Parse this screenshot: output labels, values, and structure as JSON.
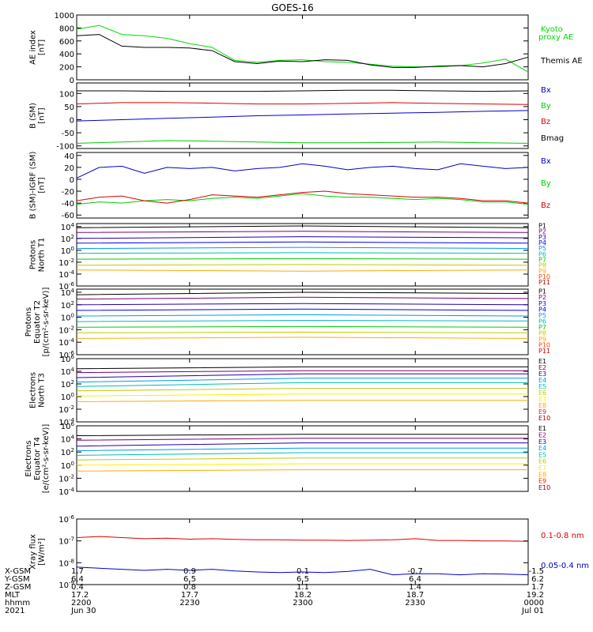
{
  "title": "GOES-16",
  "chart_data": [
    {
      "type": "line",
      "ylabel": [
        "AE index",
        "[nT]"
      ],
      "ylim": [
        0,
        1000
      ],
      "yticks": [
        "0",
        "200",
        "400",
        "600",
        "800",
        "1000"
      ],
      "ytick_values": [
        0,
        200,
        400,
        600,
        800,
        1000
      ],
      "log": false,
      "x": [
        0,
        6,
        12,
        18,
        24,
        30,
        36,
        42,
        48,
        54,
        60,
        66,
        72,
        78,
        84,
        90,
        96,
        102,
        108,
        114,
        120
      ],
      "series": [
        {
          "name": "Kyoto proxy AE",
          "color": "#00dd00",
          "values": [
            780,
            840,
            700,
            680,
            640,
            560,
            500,
            300,
            270,
            300,
            310,
            280,
            270,
            240,
            210,
            200,
            200,
            220,
            260,
            320,
            120
          ]
        },
        {
          "name": "Themis AE",
          "color": "#000000",
          "values": [
            680,
            700,
            520,
            500,
            500,
            490,
            450,
            280,
            250,
            290,
            280,
            310,
            300,
            230,
            190,
            190,
            210,
            220,
            200,
            250,
            350
          ]
        }
      ]
    },
    {
      "type": "line",
      "ylabel": [
        "B (SM)",
        "[nT]"
      ],
      "ylim": [
        -110,
        140
      ],
      "yticks": [
        "-100",
        "-50",
        "0",
        "50",
        "100"
      ],
      "ytick_values": [
        -100,
        -50,
        0,
        50,
        100
      ],
      "log": false,
      "x": [
        0,
        12,
        24,
        36,
        48,
        60,
        72,
        84,
        96,
        108,
        120
      ],
      "series": [
        {
          "name": "Bx",
          "color": "#0000cc",
          "values": [
            -5,
            0,
            5,
            10,
            15,
            18,
            22,
            25,
            28,
            32,
            35
          ]
        },
        {
          "name": "By",
          "color": "#00cc00",
          "values": [
            -90,
            -85,
            -80,
            -82,
            -85,
            -88,
            -88,
            -87,
            -85,
            -88,
            -90
          ]
        },
        {
          "name": "Bz",
          "color": "#dd0000",
          "values": [
            60,
            65,
            65,
            63,
            60,
            60,
            62,
            65,
            62,
            60,
            58
          ]
        },
        {
          "name": "Bmag",
          "color": "#000000",
          "values": [
            110,
            110,
            108,
            108,
            108,
            110,
            112,
            112,
            110,
            108,
            110
          ]
        }
      ]
    },
    {
      "type": "line",
      "ylabel": [
        "B (SM)-IGRF (SM)",
        "[nT]"
      ],
      "ylim": [
        -65,
        45
      ],
      "yticks": [
        "-60",
        "-40",
        "-20",
        "0",
        "20",
        "40"
      ],
      "ytick_values": [
        -60,
        -40,
        -20,
        0,
        20,
        40
      ],
      "log": false,
      "x": [
        0,
        6,
        12,
        18,
        24,
        30,
        36,
        42,
        48,
        54,
        60,
        66,
        72,
        78,
        84,
        90,
        96,
        102,
        108,
        114,
        120
      ],
      "series": [
        {
          "name": "Bx",
          "color": "#0000cc",
          "values": [
            2,
            20,
            22,
            10,
            20,
            18,
            20,
            14,
            18,
            20,
            26,
            22,
            16,
            20,
            22,
            18,
            16,
            26,
            22,
            18,
            20
          ]
        },
        {
          "name": "By",
          "color": "#00cc00",
          "values": [
            -42,
            -38,
            -40,
            -36,
            -34,
            -36,
            -32,
            -30,
            -32,
            -28,
            -24,
            -28,
            -30,
            -30,
            -32,
            -34,
            -32,
            -34,
            -38,
            -38,
            -42
          ]
        },
        {
          "name": "Bz",
          "color": "#dd0000",
          "values": [
            -36,
            -30,
            -28,
            -36,
            -40,
            -34,
            -26,
            -28,
            -30,
            -26,
            -22,
            -20,
            -24,
            -26,
            -28,
            -30,
            -30,
            -32,
            -36,
            -36,
            -40
          ]
        }
      ]
    },
    {
      "type": "line",
      "ylabel": [
        "Protons",
        "North T1"
      ],
      "log": true,
      "ylim": [
        -6,
        4.5
      ],
      "yticks": [
        "10^-6",
        "10^-4",
        "10^-2",
        "10^0",
        "10^2",
        "10^4"
      ],
      "ytick_values": [
        -6,
        -4,
        -2,
        0,
        2,
        4
      ],
      "legend_labels": [
        "P1",
        "P2",
        "P3",
        "P4",
        "P5",
        "P6",
        "P7",
        "P8",
        "P9",
        "P10",
        "P11"
      ],
      "legend_colors": [
        "#000000",
        "#770077",
        "#2200aa",
        "#0000ee",
        "#0099ee",
        "#00bbbb",
        "#00cc00",
        "#bbcc00",
        "#ffaa00",
        "#ff4400",
        "#cc0000"
      ],
      "x": [
        0,
        60,
        120
      ],
      "series": [
        {
          "name": "P1",
          "color": "#000000",
          "values": [
            3.8,
            4.1,
            3.8
          ]
        },
        {
          "name": "P2",
          "color": "#770077",
          "values": [
            3.0,
            3.2,
            3.0
          ]
        },
        {
          "name": "P3",
          "color": "#2200aa",
          "values": [
            2.0,
            2.3,
            2.1
          ]
        },
        {
          "name": "P4",
          "color": "#0000ee",
          "values": [
            1.2,
            1.4,
            1.2
          ]
        },
        {
          "name": "P5",
          "color": "#0099ee",
          "values": [
            0.3,
            0.5,
            0.3
          ]
        },
        {
          "name": "P6",
          "color": "#00bbbb",
          "values": [
            -0.5,
            -0.4,
            -0.5
          ]
        },
        {
          "name": "P7",
          "color": "#00cc00",
          "values": [
            -1.5,
            -1.4,
            -1.5
          ]
        },
        {
          "name": "P8",
          "color": "#bbcc00",
          "values": [
            -2.5,
            -2.4,
            -2.5
          ]
        },
        {
          "name": "P9",
          "color": "#ffaa00",
          "values": [
            -3.3,
            -3.5,
            -3.3
          ]
        }
      ]
    },
    {
      "type": "line",
      "ylabel": [
        "Protons",
        "Equator T2",
        "[p/(cm²-s-sr-keV)]"
      ],
      "log": true,
      "ylim": [
        -6,
        4.5
      ],
      "yticks": [
        "10^-6",
        "10^-4",
        "10^-2",
        "10^0",
        "10^2",
        "10^4"
      ],
      "ytick_values": [
        -6,
        -4,
        -2,
        0,
        2,
        4
      ],
      "legend_labels": [
        "P1",
        "P2",
        "P3",
        "P4",
        "P5",
        "P6",
        "P7",
        "P8",
        "P9",
        "P10",
        "P11"
      ],
      "legend_colors": [
        "#000000",
        "#770077",
        "#2200aa",
        "#0000ee",
        "#0099ee",
        "#00bbbb",
        "#00cc00",
        "#bbcc00",
        "#ffaa00",
        "#ff4400",
        "#cc0000"
      ],
      "x": [
        0,
        60,
        120
      ],
      "series": [
        {
          "name": "P1",
          "color": "#000000",
          "values": [
            3.6,
            4.0,
            3.8
          ]
        },
        {
          "name": "P2",
          "color": "#770077",
          "values": [
            2.9,
            3.2,
            3.0
          ]
        },
        {
          "name": "P3",
          "color": "#2200aa",
          "values": [
            2.0,
            2.2,
            2.0
          ]
        },
        {
          "name": "P4",
          "color": "#0000ee",
          "values": [
            1.1,
            1.3,
            1.1
          ]
        },
        {
          "name": "P5",
          "color": "#0099ee",
          "values": [
            0.2,
            0.4,
            0.2
          ]
        },
        {
          "name": "P6",
          "color": "#00bbbb",
          "values": [
            -0.7,
            -0.5,
            -0.6
          ]
        },
        {
          "name": "P7",
          "color": "#00cc00",
          "values": [
            -1.6,
            -1.5,
            -1.6
          ]
        },
        {
          "name": "P8",
          "color": "#bbcc00",
          "values": [
            -2.5,
            -2.4,
            -2.5
          ]
        },
        {
          "name": "P9",
          "color": "#ffaa00",
          "values": [
            -3.4,
            -3.2,
            -3.4
          ]
        }
      ]
    },
    {
      "type": "line",
      "ylabel": [
        "Electrons",
        "North T3"
      ],
      "log": true,
      "ylim": [
        -4,
        6
      ],
      "yticks": [
        "10^-4",
        "10^-2",
        "10^0",
        "10^2",
        "10^4",
        "10^6"
      ],
      "ytick_values": [
        -4,
        -2,
        0,
        2,
        4,
        6
      ],
      "legend_labels": [
        "E1",
        "E2",
        "E3",
        "E4",
        "E5",
        "E6",
        "E7",
        "E8",
        "E9",
        "E10"
      ],
      "legend_colors": [
        "#000000",
        "#770077",
        "#2200aa",
        "#0099ee",
        "#00bbbb",
        "#bbcc00",
        "#ffee00",
        "#ffaa00",
        "#ee2200",
        "#aa0000"
      ],
      "x": [
        0,
        60,
        120
      ],
      "series": [
        {
          "name": "E1",
          "color": "#000000",
          "values": [
            4.4,
            4.7,
            4.7
          ]
        },
        {
          "name": "E2",
          "color": "#770077",
          "values": [
            3.8,
            4.1,
            4.1
          ]
        },
        {
          "name": "E3",
          "color": "#2200aa",
          "values": [
            3.0,
            3.6,
            3.6
          ]
        },
        {
          "name": "E4",
          "color": "#0099ee",
          "values": [
            2.3,
            2.9,
            2.9
          ]
        },
        {
          "name": "E5",
          "color": "#00bbbb",
          "values": [
            1.6,
            2.2,
            2.2
          ]
        },
        {
          "name": "E6",
          "color": "#bbcc00",
          "values": [
            0.9,
            1.3,
            1.3
          ]
        },
        {
          "name": "E7",
          "color": "#ffee00",
          "values": [
            0.1,
            0.4,
            0.4
          ]
        },
        {
          "name": "E8",
          "color": "#ffaa00",
          "values": [
            -0.8,
            -0.6,
            -0.6
          ]
        }
      ]
    },
    {
      "type": "line",
      "ylabel": [
        "Electrons",
        "Equator T4",
        "[e/(cm²-s-sr-keV)]"
      ],
      "log": true,
      "ylim": [
        -4,
        6
      ],
      "yticks": [
        "10^-4",
        "10^-2",
        "10^0",
        "10^2",
        "10^4",
        "10^6"
      ],
      "ytick_values": [
        -4,
        -2,
        0,
        2,
        4,
        6
      ],
      "legend_labels": [
        "E1",
        "E2",
        "E3",
        "E4",
        "E5",
        "E6",
        "E7",
        "E8",
        "E9",
        "E10"
      ],
      "legend_colors": [
        "#000000",
        "#770077",
        "#2200aa",
        "#0099ee",
        "#00bbbb",
        "#bbcc00",
        "#ffee00",
        "#ffaa00",
        "#ee2200",
        "#aa0000"
      ],
      "x": [
        0,
        60,
        120
      ],
      "series": [
        {
          "name": "E1",
          "color": "#000000",
          "values": [
            4.5,
            4.7,
            4.7
          ]
        },
        {
          "name": "E2",
          "color": "#770077",
          "values": [
            3.8,
            4.1,
            4.1
          ]
        },
        {
          "name": "E3",
          "color": "#2200aa",
          "values": [
            2.9,
            3.4,
            3.4
          ]
        },
        {
          "name": "E4",
          "color": "#0099ee",
          "values": [
            2.2,
            2.6,
            2.6
          ]
        },
        {
          "name": "E5",
          "color": "#00bbbb",
          "values": [
            1.5,
            1.9,
            1.9
          ]
        },
        {
          "name": "E6",
          "color": "#bbcc00",
          "values": [
            0.8,
            1.1,
            1.1
          ]
        },
        {
          "name": "E7",
          "color": "#ffee00",
          "values": [
            0.0,
            0.2,
            0.2
          ]
        },
        {
          "name": "E8",
          "color": "#ffaa00",
          "values": [
            -0.9,
            -0.7,
            -0.7
          ]
        }
      ]
    },
    {
      "type": "line",
      "ylabel": [
        "Xray flux",
        "[W/m²]"
      ],
      "log": true,
      "ylim": [
        -9,
        -6
      ],
      "yticks": [
        "10^-9",
        "10^-8",
        "10^-7",
        "10^-6"
      ],
      "ytick_values": [
        -9,
        -8,
        -7,
        -6
      ],
      "x": [
        0,
        6,
        12,
        18,
        24,
        30,
        36,
        42,
        48,
        54,
        60,
        66,
        72,
        78,
        84,
        90,
        96,
        102,
        108,
        114,
        120
      ],
      "series": [
        {
          "name": "0.1-0.8 nm",
          "color": "#dd0000",
          "values": [
            -6.85,
            -6.8,
            -6.85,
            -6.9,
            -6.88,
            -6.92,
            -6.9,
            -6.93,
            -6.95,
            -6.95,
            -6.97,
            -6.97,
            -6.98,
            -6.97,
            -6.95,
            -6.9,
            -6.98,
            -6.98,
            -7.0,
            -7.0,
            -7.02
          ]
        },
        {
          "name": "0.05-0.4 nm",
          "color": "#0000cc",
          "values": [
            -8.2,
            -8.25,
            -8.3,
            -8.35,
            -8.3,
            -8.35,
            -8.3,
            -8.38,
            -8.42,
            -8.45,
            -8.42,
            -8.45,
            -8.4,
            -8.3,
            -8.55,
            -8.5,
            -8.5,
            -8.55,
            -8.5,
            -8.52,
            -8.55
          ]
        }
      ]
    }
  ],
  "series_labels": [
    {
      "panel": 0,
      "items": [
        {
          "text": "Kyoto",
          "color": "#00dd00"
        },
        {
          "text": "proxy AE",
          "color": "#00dd00"
        },
        {
          "text": "Themis AE",
          "color": "#000000"
        }
      ]
    },
    {
      "panel": 1,
      "items": [
        {
          "text": "Bx",
          "color": "#0000cc"
        },
        {
          "text": "By",
          "color": "#00cc00"
        },
        {
          "text": "Bz",
          "color": "#dd0000"
        },
        {
          "text": "Bmag",
          "color": "#000000"
        }
      ]
    },
    {
      "panel": 2,
      "items": [
        {
          "text": "Bx",
          "color": "#0000cc"
        },
        {
          "text": "By",
          "color": "#00cc00"
        },
        {
          "text": "Bz",
          "color": "#dd0000"
        }
      ]
    },
    {
      "panel": 7,
      "items": [
        {
          "text": "0.1-0.8 nm",
          "color": "#dd0000"
        },
        {
          "text": "0.05-0.4 nm",
          "color": "#0000cc"
        }
      ]
    }
  ],
  "footer": {
    "row_labels": [
      "X-GSM",
      "Y-GSM",
      "Z-GSM",
      "MLT",
      "hhmm",
      "2021"
    ],
    "columns": [
      [
        "1.7",
        "6.4",
        "0.4",
        "17.2",
        "2200",
        "Jun 30"
      ],
      [
        "0.9",
        "6.5",
        "0.8",
        "17.7",
        "2230",
        ""
      ],
      [
        "0.1",
        "6.5",
        "1.1",
        "18.2",
        "2300",
        ""
      ],
      [
        "-0.7",
        "6.4",
        "1.4",
        "18.7",
        "2330",
        ""
      ],
      [
        "-1.5",
        "6.2",
        "1.7",
        "19.2",
        "0000",
        "Jul 01"
      ]
    ]
  }
}
